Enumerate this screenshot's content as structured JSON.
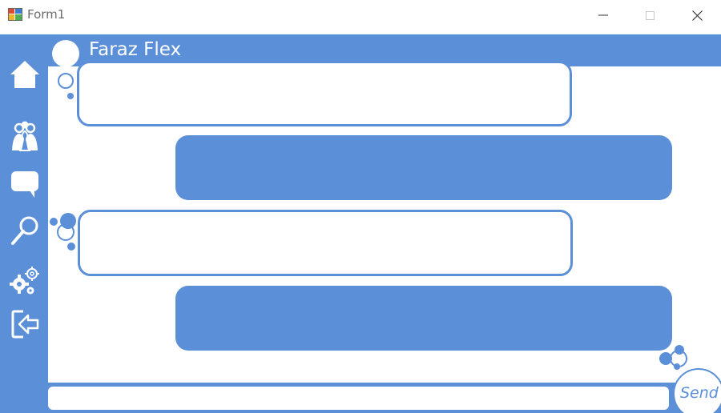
{
  "window": {
    "title": "Form1"
  },
  "header": {
    "contact_name": "Faraz Flex"
  },
  "sidebar": {
    "items": [
      {
        "name": "home",
        "icon": "home-icon"
      },
      {
        "name": "contacts",
        "icon": "contacts-icon"
      },
      {
        "name": "chats",
        "icon": "chat-bubble-icon"
      },
      {
        "name": "search",
        "icon": "search-icon"
      },
      {
        "name": "settings",
        "icon": "gears-icon"
      },
      {
        "name": "logout",
        "icon": "logout-icon"
      }
    ]
  },
  "messages": [
    {
      "direction": "incoming",
      "text": ""
    },
    {
      "direction": "outgoing",
      "text": ""
    },
    {
      "direction": "incoming",
      "text": ""
    },
    {
      "direction": "outgoing",
      "text": ""
    }
  ],
  "composer": {
    "value": "",
    "send_label": "Send"
  },
  "colors": {
    "accent": "#5b8fd8",
    "background": "#ffffff",
    "title_text": "#6b6b6b"
  }
}
